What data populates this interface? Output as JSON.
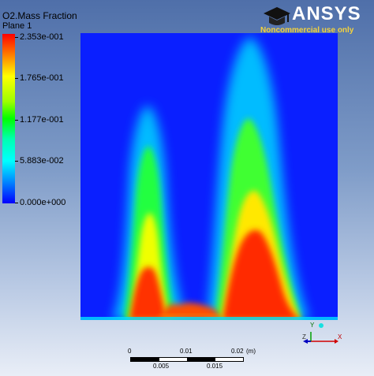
{
  "legend": {
    "title": "O2.Mass Fraction",
    "subtitle": "Plane 1",
    "ticks": [
      "2.353e-001",
      "1.765e-001",
      "1.177e-001",
      "5.883e-002",
      "0.000e+000"
    ]
  },
  "branding": {
    "logo_text": "ANSYS",
    "notice": "Noncommercial use only"
  },
  "scale": {
    "top_labels": [
      "0",
      "0.01",
      "0.02",
      "(m)"
    ],
    "bottom_labels": [
      "0.005",
      "0.015"
    ]
  },
  "axes": {
    "labels": [
      "Z",
      "X",
      "Y"
    ]
  }
}
